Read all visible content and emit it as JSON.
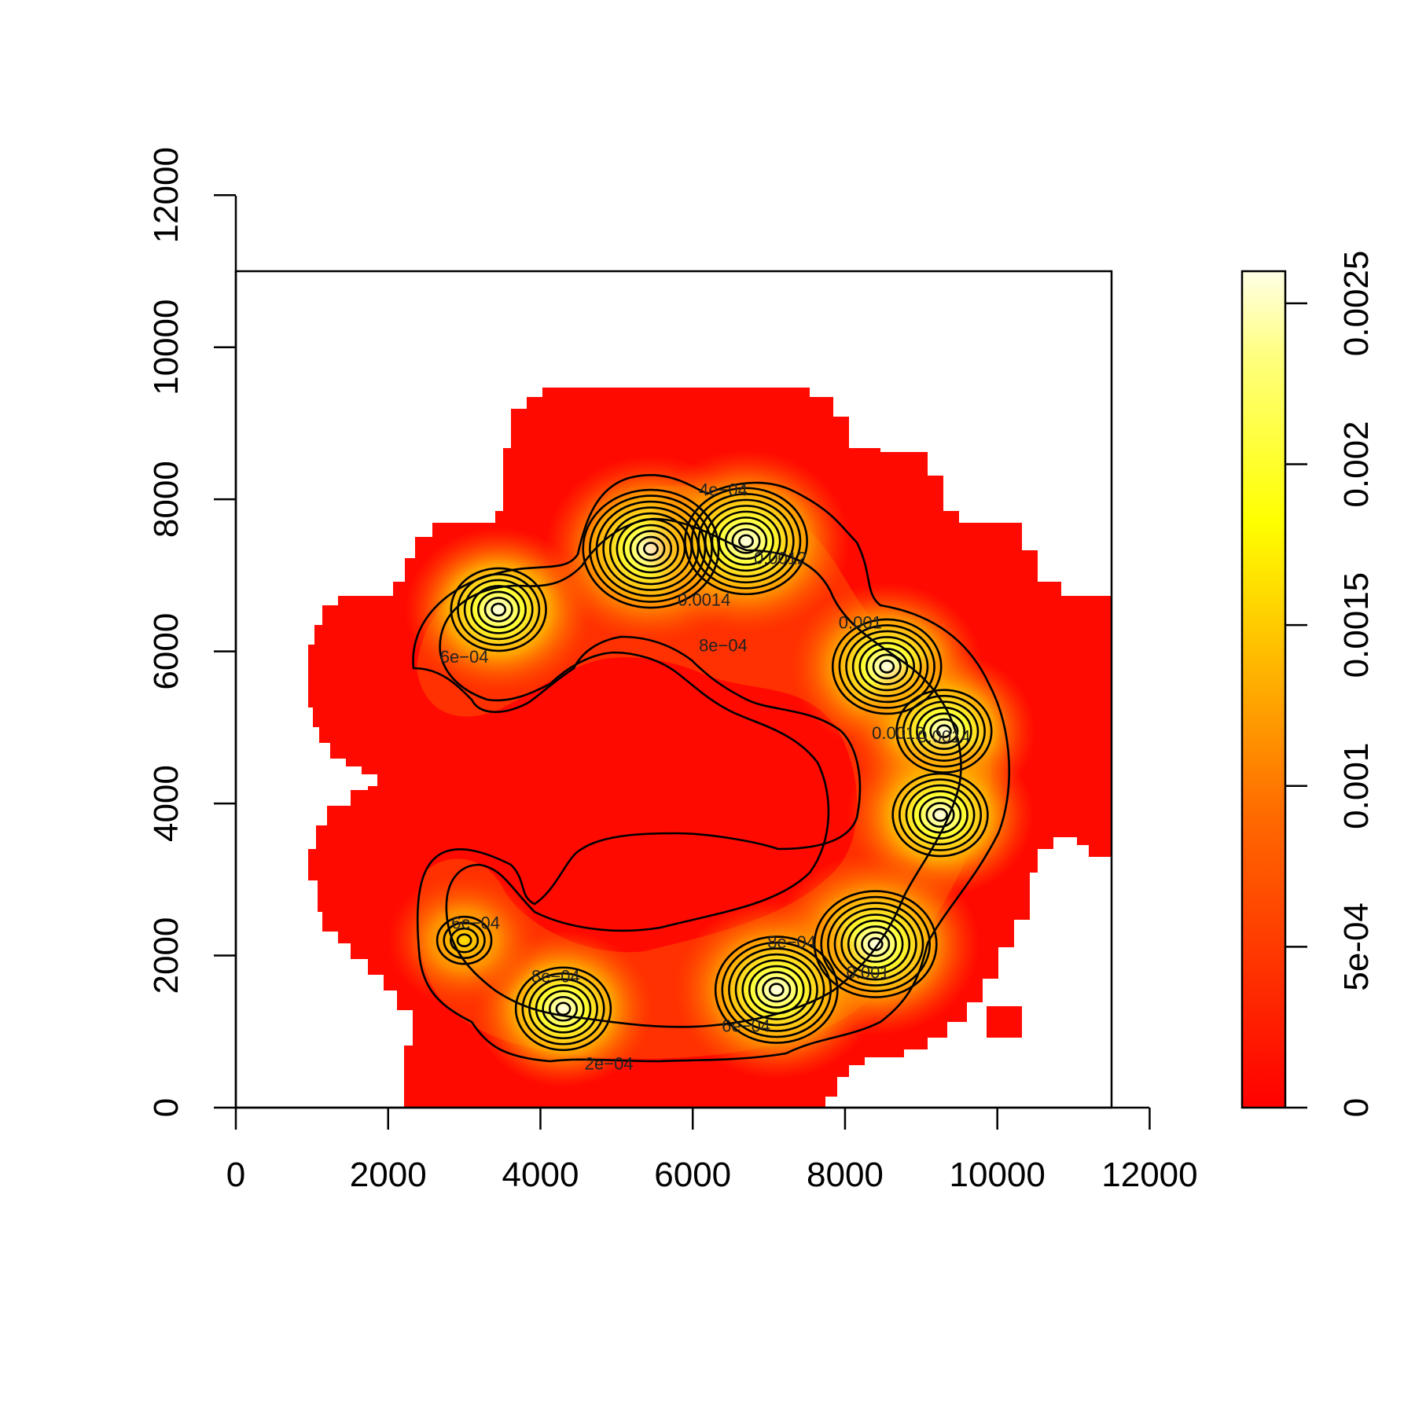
{
  "chart_data": {
    "type": "heatmap",
    "title": "",
    "xlabel": "",
    "ylabel": "",
    "xlim": [
      0,
      11500
    ],
    "ylim": [
      0,
      11000
    ],
    "x_ticks": [
      "0",
      "2000",
      "4000",
      "6000",
      "8000",
      "10000",
      "12000"
    ],
    "y_ticks": [
      "0",
      "2000",
      "4000",
      "6000",
      "8000",
      "10000",
      "12000"
    ],
    "grid": false,
    "colorbar": {
      "range": [
        0,
        0.0026
      ],
      "ticks": [
        "0",
        "5e-04",
        "0.001",
        "0.0015",
        "0.002",
        "0.0025"
      ],
      "tick_values": [
        0,
        0.0005,
        0.001,
        0.0015,
        0.002,
        0.0025
      ],
      "colors": [
        "#ff0000",
        "#ff8000",
        "#ffff00",
        "#ffffe0"
      ]
    },
    "density_peaks": [
      {
        "x": 3450,
        "y": 6550,
        "value": 0.0019
      },
      {
        "x": 5450,
        "y": 7350,
        "value": 0.0025
      },
      {
        "x": 6700,
        "y": 7450,
        "value": 0.0024
      },
      {
        "x": 8550,
        "y": 5800,
        "value": 0.002
      },
      {
        "x": 9300,
        "y": 4950,
        "value": 0.0018
      },
      {
        "x": 9250,
        "y": 3850,
        "value": 0.0019
      },
      {
        "x": 8400,
        "y": 2150,
        "value": 0.0024
      },
      {
        "x": 7100,
        "y": 1550,
        "value": 0.0023
      },
      {
        "x": 4300,
        "y": 1300,
        "value": 0.0017
      },
      {
        "x": 3000,
        "y": 2200,
        "value": 0.0011
      }
    ],
    "contour_labels": [
      {
        "text": "4e−04",
        "x": 6400,
        "y": 8050
      },
      {
        "text": "0.0012",
        "x": 7150,
        "y": 7150
      },
      {
        "text": "0.0014",
        "x": 6150,
        "y": 6600
      },
      {
        "text": "8e−04",
        "x": 6400,
        "y": 6000
      },
      {
        "text": "0.001",
        "x": 8200,
        "y": 6300
      },
      {
        "text": "6e−04",
        "x": 3000,
        "y": 5850
      },
      {
        "text": "0.0012",
        "x": 8700,
        "y": 4850
      },
      {
        "text": "0.0014",
        "x": 9300,
        "y": 4800
      },
      {
        "text": "6e−04",
        "x": 3150,
        "y": 2350
      },
      {
        "text": "8e−04",
        "x": 4200,
        "y": 1650
      },
      {
        "text": "8e−04",
        "x": 7300,
        "y": 2100
      },
      {
        "text": "0.001",
        "x": 8300,
        "y": 1700
      },
      {
        "text": "6e−04",
        "x": 6700,
        "y": 1000
      },
      {
        "text": "2e−04",
        "x": 4900,
        "y": 500
      }
    ]
  }
}
